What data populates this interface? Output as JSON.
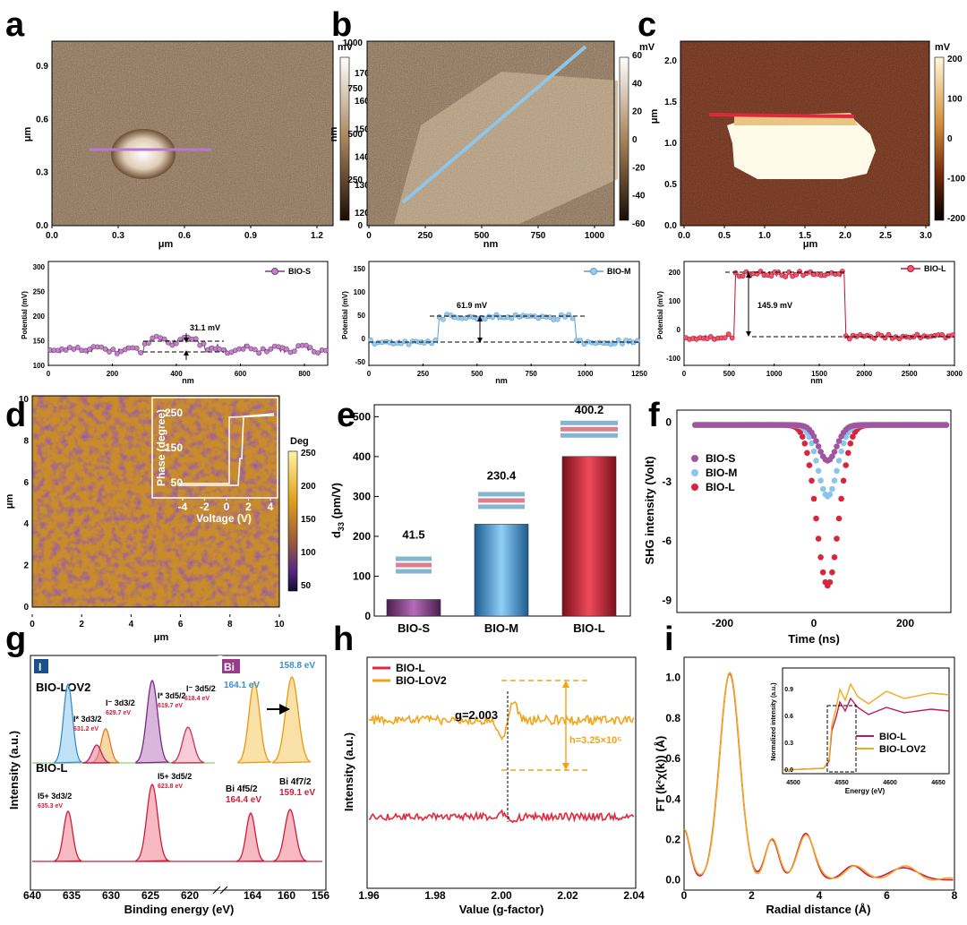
{
  "panels": {
    "a": {
      "letter": "a",
      "unit": "mV",
      "xlabel": "μm",
      "ylabel": "μm",
      "xticks": [
        "0.0",
        "0.3",
        "0.6",
        "0.9",
        "1.2"
      ],
      "yticks": [
        "0.0",
        "0.3",
        "0.6",
        "0.9"
      ],
      "cbticks": [
        "170",
        "160",
        "150",
        "140",
        "130",
        "120"
      ],
      "profile": {
        "legend": "BIO-S",
        "xlabel": "nm",
        "ylabel": "Potential (mV)",
        "annotation": "31.1 mV",
        "xticks": [
          "0",
          "200",
          "400",
          "600",
          "800"
        ],
        "yticks": [
          "100",
          "150",
          "200",
          "250",
          "300"
        ]
      }
    },
    "b": {
      "letter": "b",
      "unit": "mV",
      "xlabel": "nm",
      "ylabel": "nm",
      "xticks": [
        "0",
        "250",
        "500",
        "750",
        "1000"
      ],
      "yticks": [
        "0",
        "250",
        "500",
        "750",
        "1000"
      ],
      "cbticks": [
        "60",
        "40",
        "20",
        "0",
        "-20",
        "-40",
        "-60"
      ],
      "profile": {
        "legend": "BIO-M",
        "xlabel": "nm",
        "ylabel": "Potential (mV)",
        "annotation": "61.9 mV",
        "xticks": [
          "0",
          "250",
          "500",
          "750",
          "1000",
          "1250"
        ],
        "yticks": [
          "-50",
          "0",
          "50",
          "100",
          "150"
        ]
      }
    },
    "c": {
      "letter": "c",
      "unit": "mV",
      "xlabel": "μm",
      "ylabel": "μm",
      "xticks": [
        "0.0",
        "0.5",
        "1.0",
        "1.5",
        "2.0",
        "2.5",
        "3.0"
      ],
      "yticks": [
        "0.0",
        "0.5",
        "1.0",
        "1.5",
        "2.0"
      ],
      "cbticks": [
        "200",
        "100",
        "0",
        "-100",
        "-200"
      ],
      "profile": {
        "legend": "BIO-L",
        "xlabel": "nm",
        "ylabel": "Potential (mV)",
        "annotation": "145.9 mV",
        "xticks": [
          "0",
          "500",
          "1000",
          "1500",
          "2000",
          "2500",
          "3000"
        ],
        "yticks": [
          "-100",
          "0",
          "100",
          "200"
        ]
      }
    },
    "d": {
      "letter": "d",
      "unit": "Deg",
      "xlabel": "μm",
      "ylabel": "μm",
      "xticks": [
        "0",
        "2",
        "4",
        "6",
        "8",
        "10"
      ],
      "yticks": [
        "0",
        "2",
        "4",
        "6",
        "8",
        "10"
      ],
      "cbticks": [
        "250",
        "200",
        "150",
        "100",
        "50"
      ],
      "inset": {
        "xlabel": "Voltage (V)",
        "ylabel": "Phase (degree)",
        "xticks": [
          "-4",
          "-2",
          "0",
          "2",
          "4"
        ],
        "yticks": [
          "50",
          "150",
          "250"
        ]
      }
    },
    "e": {
      "letter": "e"
    },
    "f": {
      "letter": "f"
    },
    "g": {
      "letter": "g",
      "tagI": "I",
      "tagBi": "Bi",
      "sampleTop": "BIO-LOV2",
      "sampleBottom": "BIO-L",
      "xlabel": "Binding energy (eV)",
      "ylabel": "Intensity (a.u.)",
      "xticksI": [
        "640",
        "635",
        "630",
        "625",
        "620"
      ],
      "xticksBi": [
        "164",
        "160",
        "156"
      ],
      "labels": {
        "i3d32": "I⁻ 3d3/2",
        "i3d52": "I⁻ 3d5/2",
        "istar32": "I* 3d3/2",
        "istar52": "I* 3d5/2",
        "e6297": "629.7 eV",
        "e6184": "618.4 eV",
        "e6312": "631.2 eV",
        "e6197": "619.7 eV",
        "bi1641": "164.1 eV",
        "bi1588": "158.8 eV",
        "i5p32": "I5+ 3d3/2",
        "i5p52": "I5+ 3d5/2",
        "e6353": "635.3 eV",
        "e6238": "623.8 eV",
        "bi4f52": "Bi 4f5/2",
        "bi4f72": "Bi 4f7/2",
        "bi1644": "164.4 eV",
        "bi1591": "159.1 eV"
      }
    },
    "h": {
      "letter": "h"
    },
    "i": {
      "letter": "i"
    }
  },
  "chart_data": [
    {
      "panel": "e",
      "type": "bar",
      "categories": [
        "BIO-S",
        "BIO-M",
        "BIO-L"
      ],
      "values": [
        41.5,
        230.4,
        400.2
      ],
      "value_labels": [
        "41.5",
        "230.4",
        "400.2"
      ],
      "ylabel": "d33 (pm/V)",
      "ylim": [
        0,
        530
      ],
      "yticks": [
        "0",
        "100",
        "200",
        "300",
        "400",
        "500"
      ],
      "colors": [
        "#8a3a8c",
        "#3f8fd0",
        "#c8102e"
      ]
    },
    {
      "panel": "f",
      "type": "scatter",
      "xlabel": "Time (ns)",
      "ylabel": "SHG  intensity (Volt)",
      "xlim": [
        -300,
        300
      ],
      "ylim": [
        -9.6,
        0.6
      ],
      "xticks": [
        "-200",
        "0",
        "200"
      ],
      "yticks": [
        "0",
        "-3",
        "-6",
        "-9"
      ],
      "series": [
        {
          "name": "BIO-S",
          "depth": -1.8,
          "center": 30,
          "width": 28,
          "color": "#a0559e"
        },
        {
          "name": "BIO-M",
          "depth": -3.6,
          "center": 30,
          "width": 30,
          "color": "#8cc5ec"
        },
        {
          "name": "BIO-L",
          "depth": -8.1,
          "center": 30,
          "width": 34,
          "color": "#d7263d"
        }
      ]
    },
    {
      "panel": "h",
      "type": "line",
      "xlabel": "Value (g-factor)",
      "ylabel": "Intensity (a.u.)",
      "xlim": [
        1.96,
        2.04
      ],
      "xticks": [
        "1.96",
        "1.98",
        "2.00",
        "2.02",
        "2.04"
      ],
      "series": [
        {
          "name": "BIO-L",
          "color": "#e0283d"
        },
        {
          "name": "BIO-LOV2",
          "color": "#f3a318"
        }
      ],
      "annotations": {
        "g": "g=2.003",
        "h": "h=3.25×10⁵"
      }
    },
    {
      "panel": "i",
      "type": "line",
      "xlabel": "Radial distance (Å)",
      "ylabel": "FT (k²χ(k)) (Å)",
      "xlim": [
        0,
        8
      ],
      "ylim": [
        -0.05,
        1.1
      ],
      "xticks": [
        "0",
        "2",
        "4",
        "6",
        "8"
      ],
      "yticks": [
        "0.0",
        "0.2",
        "0.4",
        "0.6",
        "0.8",
        "1.0"
      ],
      "series": [
        {
          "name": "BIO-L",
          "color": "#c2185b"
        },
        {
          "name": "BIO-LOV2",
          "color": "#f2a91e"
        }
      ],
      "inset": {
        "xlabel": "Energy (eV)",
        "ylabel": "Normalized intensity (a.u.)",
        "xticks": [
          "4500",
          "4550",
          "4600",
          "4650"
        ],
        "yticks": [
          "0.0",
          "0.3",
          "0.6",
          "0.9"
        ]
      }
    }
  ]
}
